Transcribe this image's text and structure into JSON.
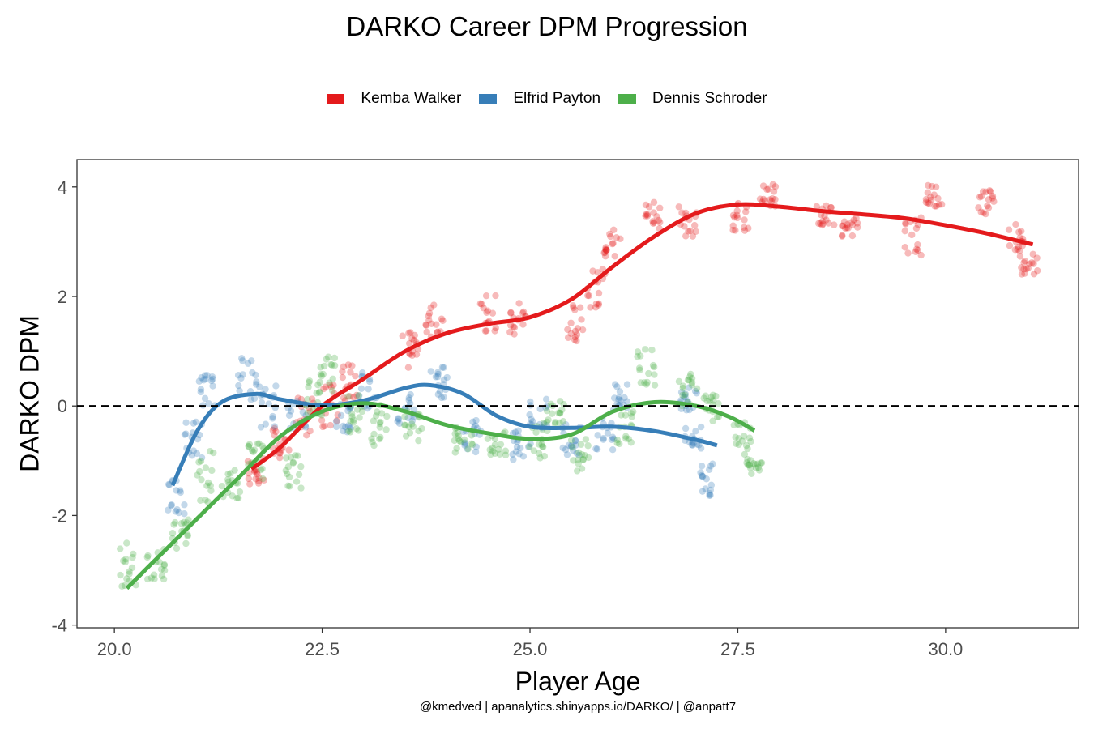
{
  "chart_data": {
    "type": "scatter",
    "title": "DARKO Career DPM Progression",
    "xlabel": "Player Age",
    "ylabel": "DARKO DPM",
    "caption": "@kmedved | apanalytics.shinyapps.io/DARKO/ | @anpatt7",
    "xlim": [
      19.55,
      31.6
    ],
    "ylim": [
      -4.05,
      4.5
    ],
    "x_ticks": [
      20.0,
      22.5,
      25.0,
      27.5,
      30.0
    ],
    "x_tick_labels": [
      "20.0",
      "22.5",
      "25.0",
      "27.5",
      "30.0"
    ],
    "y_ticks": [
      -4,
      -2,
      0,
      2,
      4
    ],
    "y_tick_labels": [
      "-4",
      "-2",
      "0",
      "2",
      "4"
    ],
    "reference_line_y": 0,
    "grid": false,
    "legend_position": "top",
    "series": [
      {
        "name": "Kemba Walker",
        "color": "#e41a1c",
        "trend": [
          [
            21.65,
            -1.15
          ],
          [
            22.0,
            -0.75
          ],
          [
            22.5,
            0.0
          ],
          [
            23.0,
            0.5
          ],
          [
            23.5,
            1.0
          ],
          [
            24.0,
            1.33
          ],
          [
            24.5,
            1.5
          ],
          [
            25.0,
            1.62
          ],
          [
            25.5,
            1.95
          ],
          [
            26.0,
            2.55
          ],
          [
            26.5,
            3.1
          ],
          [
            27.0,
            3.52
          ],
          [
            27.5,
            3.68
          ],
          [
            28.0,
            3.64
          ],
          [
            28.5,
            3.56
          ],
          [
            29.0,
            3.5
          ],
          [
            29.5,
            3.43
          ],
          [
            30.0,
            3.3
          ],
          [
            30.5,
            3.15
          ],
          [
            31.05,
            2.95
          ]
        ],
        "point_clusters": [
          [
            21.7,
            -1.2,
            0.25
          ],
          [
            22.0,
            -0.7,
            0.3
          ],
          [
            22.3,
            -0.2,
            0.35
          ],
          [
            22.6,
            0.05,
            0.45
          ],
          [
            22.85,
            0.45,
            0.35
          ],
          [
            23.55,
            1.0,
            0.35
          ],
          [
            23.85,
            1.55,
            0.3
          ],
          [
            24.5,
            1.7,
            0.35
          ],
          [
            24.85,
            1.55,
            0.35
          ],
          [
            25.55,
            1.5,
            0.35
          ],
          [
            25.8,
            2.15,
            0.35
          ],
          [
            26.0,
            2.95,
            0.3
          ],
          [
            26.5,
            3.5,
            0.3
          ],
          [
            26.9,
            3.35,
            0.3
          ],
          [
            27.55,
            3.45,
            0.25
          ],
          [
            27.85,
            3.85,
            0.2
          ],
          [
            28.55,
            3.5,
            0.25
          ],
          [
            28.85,
            3.25,
            0.2
          ],
          [
            29.6,
            3.1,
            0.35
          ],
          [
            29.85,
            3.85,
            0.2
          ],
          [
            30.5,
            3.7,
            0.25
          ],
          [
            30.85,
            3.05,
            0.3
          ],
          [
            31.0,
            2.6,
            0.2
          ]
        ]
      },
      {
        "name": "Elfrid Payton",
        "color": "#377eb8",
        "trend": [
          [
            20.7,
            -1.45
          ],
          [
            21.0,
            -0.45
          ],
          [
            21.3,
            0.08
          ],
          [
            21.7,
            0.22
          ],
          [
            22.0,
            0.12
          ],
          [
            22.5,
            0.01
          ],
          [
            23.0,
            0.1
          ],
          [
            23.5,
            0.33
          ],
          [
            23.8,
            0.38
          ],
          [
            24.2,
            0.22
          ],
          [
            24.6,
            -0.18
          ],
          [
            25.0,
            -0.38
          ],
          [
            25.5,
            -0.4
          ],
          [
            26.0,
            -0.38
          ],
          [
            26.5,
            -0.46
          ],
          [
            27.0,
            -0.62
          ],
          [
            27.25,
            -0.72
          ]
        ],
        "point_clusters": [
          [
            20.75,
            -1.7,
            0.35
          ],
          [
            20.95,
            -0.6,
            0.35
          ],
          [
            21.1,
            0.3,
            0.3
          ],
          [
            21.6,
            0.5,
            0.4
          ],
          [
            21.85,
            0.0,
            0.4
          ],
          [
            22.2,
            -0.15,
            0.3
          ],
          [
            22.75,
            -0.2,
            0.35
          ],
          [
            23.05,
            0.3,
            0.35
          ],
          [
            23.5,
            -0.05,
            0.3
          ],
          [
            23.9,
            0.45,
            0.3
          ],
          [
            24.3,
            -0.55,
            0.3
          ],
          [
            24.9,
            -0.7,
            0.3
          ],
          [
            25.1,
            -0.15,
            0.3
          ],
          [
            25.5,
            -0.6,
            0.3
          ],
          [
            25.9,
            -0.5,
            0.3
          ],
          [
            26.1,
            0.15,
            0.25
          ],
          [
            26.9,
            0.15,
            0.3
          ],
          [
            26.95,
            -0.6,
            0.25
          ],
          [
            27.15,
            -1.35,
            0.3
          ]
        ]
      },
      {
        "name": "Dennis Schroder",
        "color": "#4daf4a",
        "trend": [
          [
            20.15,
            -3.33
          ],
          [
            20.5,
            -2.8
          ],
          [
            21.0,
            -2.05
          ],
          [
            21.5,
            -1.3
          ],
          [
            22.0,
            -0.55
          ],
          [
            22.5,
            -0.1
          ],
          [
            23.0,
            0.05
          ],
          [
            23.5,
            -0.1
          ],
          [
            24.0,
            -0.35
          ],
          [
            24.5,
            -0.5
          ],
          [
            25.0,
            -0.6
          ],
          [
            25.5,
            -0.52
          ],
          [
            26.0,
            -0.1
          ],
          [
            26.5,
            0.07
          ],
          [
            27.0,
            0.0
          ],
          [
            27.4,
            -0.2
          ],
          [
            27.7,
            -0.45
          ]
        ],
        "point_clusters": [
          [
            20.15,
            -2.8,
            0.5
          ],
          [
            20.5,
            -2.9,
            0.3
          ],
          [
            20.8,
            -2.3,
            0.3
          ],
          [
            21.1,
            -1.3,
            0.5
          ],
          [
            21.4,
            -1.4,
            0.3
          ],
          [
            21.7,
            -1.0,
            0.35
          ],
          [
            22.15,
            -1.2,
            0.3
          ],
          [
            22.4,
            0.15,
            0.35
          ],
          [
            22.55,
            0.6,
            0.35
          ],
          [
            22.9,
            -0.15,
            0.35
          ],
          [
            23.2,
            -0.35,
            0.4
          ],
          [
            23.6,
            -0.35,
            0.3
          ],
          [
            24.2,
            -0.6,
            0.25
          ],
          [
            24.6,
            -0.65,
            0.25
          ],
          [
            25.1,
            -0.6,
            0.35
          ],
          [
            25.3,
            -0.15,
            0.25
          ],
          [
            25.6,
            -0.9,
            0.3
          ],
          [
            26.15,
            -0.4,
            0.3
          ],
          [
            26.4,
            0.7,
            0.35
          ],
          [
            26.9,
            0.3,
            0.3
          ],
          [
            27.2,
            -0.05,
            0.25
          ],
          [
            27.55,
            -0.6,
            0.3
          ],
          [
            27.7,
            -1.1,
            0.15
          ]
        ]
      }
    ]
  }
}
